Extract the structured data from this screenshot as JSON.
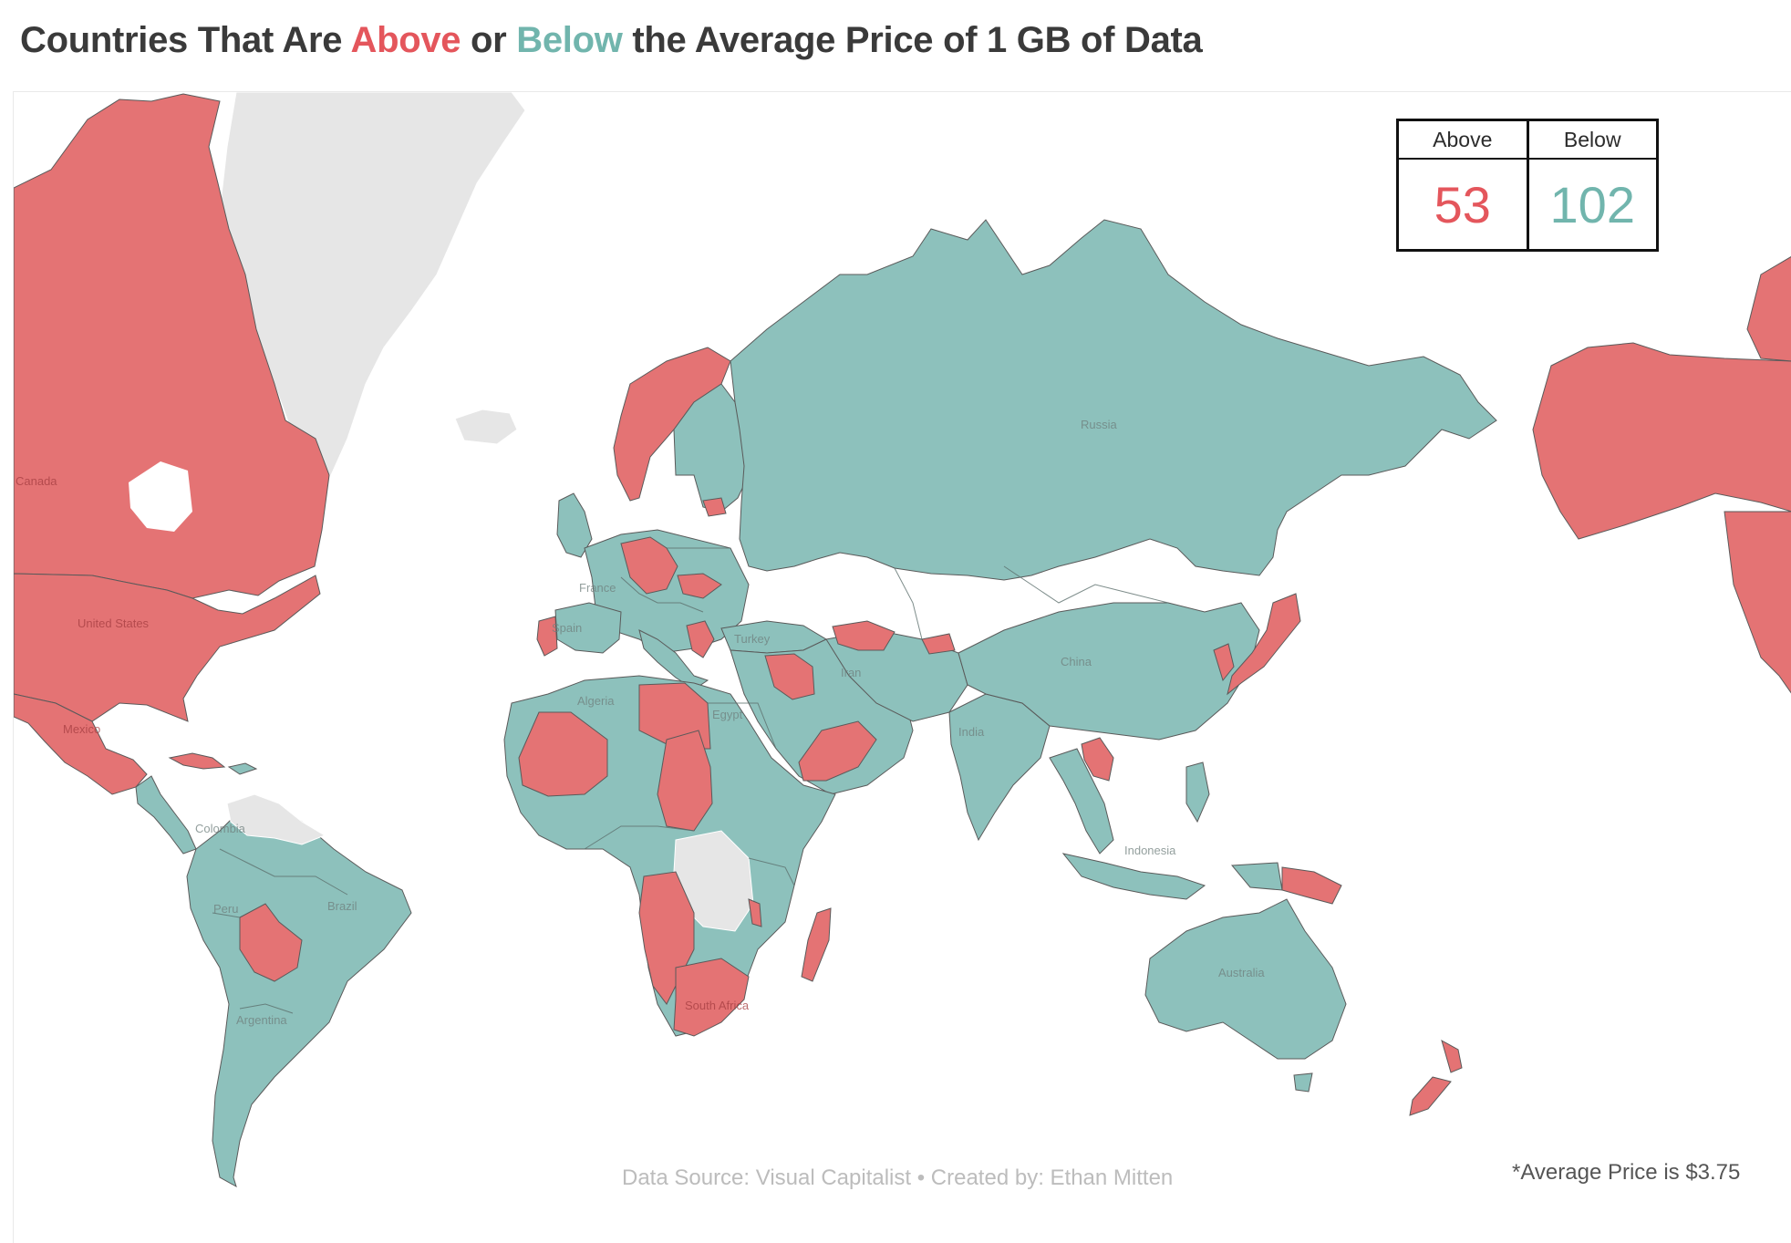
{
  "title": {
    "part1": "Countries That Are ",
    "above_word": "Above",
    "part2": " or ",
    "below_word": "Below",
    "part3": "  the Average Price of 1 GB of Data"
  },
  "legend": {
    "above_label": "Above",
    "above_count": "53",
    "below_label": "Below",
    "below_count": "102"
  },
  "colors": {
    "above": "#e47374",
    "below": "#8dc1bc",
    "no_data": "#e6e6e6",
    "above_text": "#e4565c",
    "below_text": "#71b5ad"
  },
  "map_labels": {
    "canada": "Canada",
    "united_states": "United States",
    "mexico": "Mexico",
    "colombia": "Colombia",
    "peru": "Peru",
    "brazil": "Brazil",
    "argentina": "Argentina",
    "france": "France",
    "spain": "Spain",
    "turkey": "Turkey",
    "algeria": "Algeria",
    "egypt": "Egypt",
    "iran": "Iran",
    "russia": "Russia",
    "china": "China",
    "india": "India",
    "indonesia": "Indonesia",
    "australia": "Australia",
    "south_africa": "South Africa"
  },
  "source": "Data Source: Visual Capitalist • Created by: Ethan Mitten",
  "footnote": "*Average Price is $3.75"
}
